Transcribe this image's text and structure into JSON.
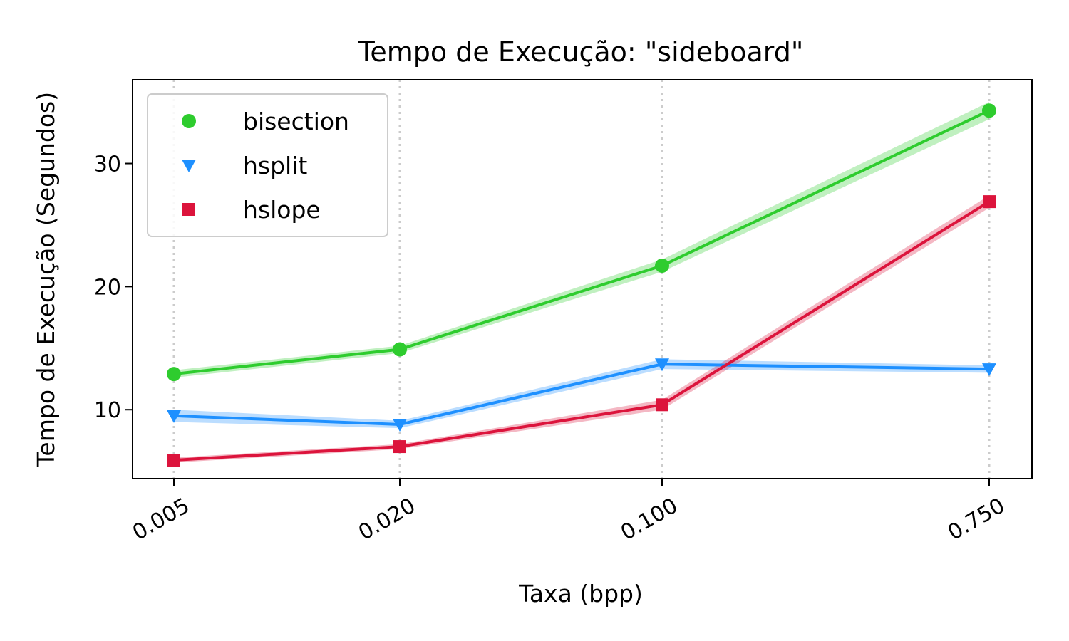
{
  "chart_data": {
    "type": "line",
    "title": "Tempo de Execução: \"sideboard\"",
    "xlabel": "Taxa (bpp)",
    "ylabel": "Tempo de Execução (Segundos)",
    "x_scale": "log",
    "x": [
      0.005,
      0.02,
      0.1,
      0.75
    ],
    "x_tick_labels": [
      "0.005",
      "0.020",
      "0.100",
      "0.750"
    ],
    "ylim": [
      4.4,
      36.8
    ],
    "y_ticks": [
      10,
      20,
      30
    ],
    "y_tick_labels": [
      "10",
      "20",
      "30"
    ],
    "grid": "vertical dotted",
    "legend_position": "top-left",
    "series": [
      {
        "name": "bisection",
        "color": "#2ecc2e",
        "marker": "circle",
        "values": [
          12.9,
          14.9,
          21.7,
          34.3
        ],
        "band": [
          0.3,
          0.3,
          0.5,
          0.7
        ]
      },
      {
        "name": "hsplit",
        "color": "#1e90ff",
        "marker": "triangle-down",
        "values": [
          9.5,
          8.8,
          13.7,
          13.3
        ],
        "band": [
          0.5,
          0.3,
          0.4,
          0.3
        ]
      },
      {
        "name": "hslope",
        "color": "#dc143c",
        "marker": "square",
        "values": [
          5.9,
          7.0,
          10.4,
          26.9
        ],
        "band": [
          0.2,
          0.2,
          0.4,
          0.5
        ]
      }
    ]
  }
}
